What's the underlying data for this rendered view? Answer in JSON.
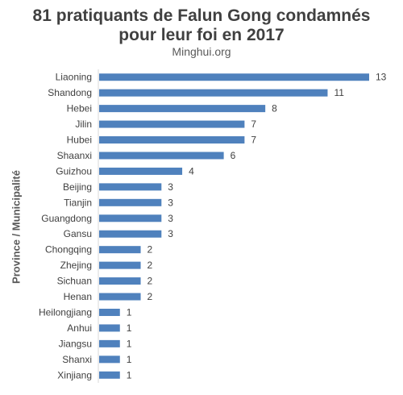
{
  "chart_data": {
    "type": "bar",
    "orientation": "horizontal",
    "title": "81 pratiquants de Falun Gong condamnés\npour leur foi en 2017",
    "subtitle": "Minghui.org",
    "ylabel": "Province / Municipalité",
    "xlabel": "",
    "categories": [
      "Liaoning",
      "Shandong",
      "Hebei",
      "Jilin",
      "Hubei",
      "Shaanxi",
      "Guizhou",
      "Beijing",
      "Tianjin",
      "Guangdong",
      "Gansu",
      "Chongqing",
      "Zhejing",
      "Sichuan",
      "Henan",
      "Heilongjiang",
      "Anhui",
      "Jiangsu",
      "Shanxi",
      "Xinjiang"
    ],
    "values": [
      13,
      11,
      8,
      7,
      7,
      6,
      4,
      3,
      3,
      3,
      3,
      2,
      2,
      2,
      2,
      1,
      1,
      1,
      1,
      1
    ],
    "xlim": [
      0,
      13
    ],
    "data_labels": true,
    "grid": false,
    "legend": "none",
    "bar_color": "#4f81bd",
    "axis_color": "#d9d9d9"
  }
}
